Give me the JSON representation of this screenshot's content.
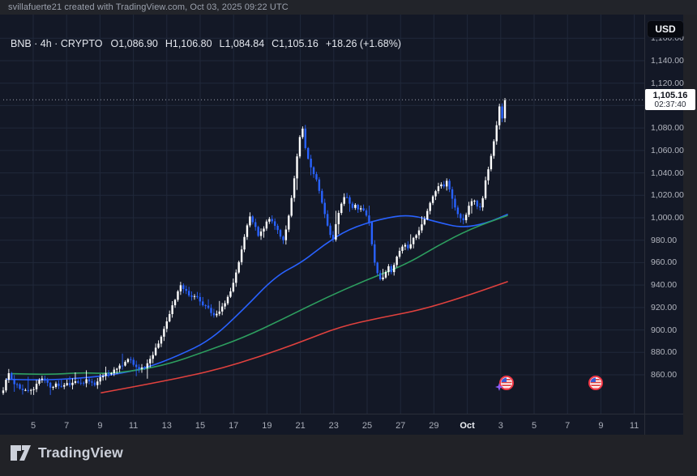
{
  "attribution": {
    "text": "svillafuerte21 created with TradingView.com, Oct 03, 2025 09:22 UTC"
  },
  "currency_button": "USD",
  "legend": {
    "title": "BNB · 4h · CRYPTO",
    "ohlc": [
      {
        "k": "O",
        "v": "1,086.90"
      },
      {
        "k": "H",
        "v": "1,106.80"
      },
      {
        "k": "L",
        "v": "1,084.84"
      },
      {
        "k": "C",
        "v": "1,105.16"
      }
    ],
    "change": "+18.26 (+1.68%)"
  },
  "price_label": {
    "price": "1,105.16",
    "countdown": "02:37:40"
  },
  "brand": {
    "name": "TradingView"
  },
  "chart_data": {
    "type": "candlestick",
    "symbol": "BNB",
    "interval": "4h",
    "exchange": "CRYPTO",
    "open": 1086.9,
    "high": 1106.8,
    "low": 1084.84,
    "close": 1105.16,
    "change_abs": "+18.26",
    "change_pct": "+1.68%",
    "last_price": 1105.16,
    "ylim": [
      826,
      1181
    ],
    "grid": true,
    "y_axis": {
      "grid_min": 860,
      "grid_max": 1160,
      "grid_step": 20,
      "labels": [
        {
          "value": 1160,
          "label": "1,160.00"
        },
        {
          "value": 1140,
          "label": "1,140.00"
        },
        {
          "value": 1120,
          "label": "1,120.00"
        },
        {
          "value": 1080,
          "label": "1,080.00"
        },
        {
          "value": 1060,
          "label": "1,060.00"
        },
        {
          "value": 1040,
          "label": "1,040.00"
        },
        {
          "value": 1020,
          "label": "1,020.00"
        },
        {
          "value": 1000,
          "label": "1,000.00"
        },
        {
          "value": 980,
          "label": "980.00"
        },
        {
          "value": 960,
          "label": "960.00"
        },
        {
          "value": 940,
          "label": "940.00"
        },
        {
          "value": 920,
          "label": "920.00"
        },
        {
          "value": 900,
          "label": "900.00"
        },
        {
          "value": 880,
          "label": "880.00"
        },
        {
          "value": 860,
          "label": "860.00"
        }
      ]
    },
    "x_axis": {
      "labels": [
        "5",
        "7",
        "9",
        "11",
        "13",
        "15",
        "17",
        "19",
        "21",
        "23",
        "25",
        "27",
        "29",
        "Oct",
        "3",
        "5",
        "7",
        "9",
        "11"
      ],
      "bold_label": "Oct",
      "first_x": 41,
      "step_x": 41.2
    },
    "candles": {
      "first_x": 4,
      "step_x": 3.42,
      "count": 182,
      "body_half_width": 1.2
    },
    "price_path": [
      [
        3,
        843
      ],
      [
        10,
        862
      ],
      [
        14,
        856
      ],
      [
        18,
        852
      ],
      [
        24,
        849
      ],
      [
        30,
        846
      ],
      [
        36,
        845
      ],
      [
        41,
        847
      ],
      [
        46,
        853
      ],
      [
        52,
        857
      ],
      [
        58,
        852
      ],
      [
        64,
        849
      ],
      [
        70,
        852
      ],
      [
        76,
        850
      ],
      [
        82,
        853
      ],
      [
        88,
        851
      ],
      [
        94,
        854
      ],
      [
        100,
        852
      ],
      [
        106,
        855
      ],
      [
        112,
        853
      ],
      [
        118,
        851
      ],
      [
        124,
        857
      ],
      [
        130,
        862
      ],
      [
        136,
        860
      ],
      [
        142,
        865
      ],
      [
        148,
        868
      ],
      [
        154,
        871
      ],
      [
        160,
        874
      ],
      [
        166,
        869
      ],
      [
        172,
        865
      ],
      [
        178,
        867
      ],
      [
        184,
        872
      ],
      [
        190,
        880
      ],
      [
        196,
        889
      ],
      [
        202,
        900
      ],
      [
        208,
        912
      ],
      [
        214,
        924
      ],
      [
        219,
        934
      ],
      [
        224,
        940
      ],
      [
        229,
        935
      ],
      [
        234,
        929
      ],
      [
        239,
        932
      ],
      [
        244,
        928
      ],
      [
        249,
        924
      ],
      [
        254,
        921
      ],
      [
        259,
        917
      ],
      [
        264,
        913
      ],
      [
        269,
        915
      ],
      [
        274,
        920
      ],
      [
        279,
        927
      ],
      [
        284,
        934
      ],
      [
        289,
        944
      ],
      [
        294,
        958
      ],
      [
        299,
        974
      ],
      [
        304,
        992
      ],
      [
        309,
        1001
      ],
      [
        314,
        993
      ],
      [
        319,
        983
      ],
      [
        324,
        989
      ],
      [
        329,
        997
      ],
      [
        334,
        1000
      ],
      [
        339,
        993
      ],
      [
        344,
        986
      ],
      [
        349,
        979
      ],
      [
        354,
        992
      ],
      [
        358,
        1010
      ],
      [
        362,
        1030
      ],
      [
        366,
        1052
      ],
      [
        370,
        1072
      ],
      [
        373,
        1080
      ],
      [
        376,
        1066
      ],
      [
        379,
        1055
      ],
      [
        383,
        1047
      ],
      [
        387,
        1040
      ],
      [
        391,
        1033
      ],
      [
        395,
        1020
      ],
      [
        399,
        1008
      ],
      [
        403,
        997
      ],
      [
        407,
        986
      ],
      [
        411,
        981
      ],
      [
        415,
        996
      ],
      [
        419,
        1008
      ],
      [
        423,
        1017
      ],
      [
        427,
        1021
      ],
      [
        431,
        1014
      ],
      [
        435,
        1008
      ],
      [
        439,
        1013
      ],
      [
        443,
        1006
      ],
      [
        447,
        1010
      ],
      [
        451,
        1004
      ],
      [
        455,
        998
      ],
      [
        459,
        976
      ],
      [
        463,
        958
      ],
      [
        467,
        948
      ],
      [
        471,
        943
      ],
      [
        475,
        951
      ],
      [
        479,
        958
      ],
      [
        483,
        951
      ],
      [
        487,
        960
      ],
      [
        491,
        967
      ],
      [
        495,
        972
      ],
      [
        499,
        977
      ],
      [
        503,
        971
      ],
      [
        507,
        978
      ],
      [
        511,
        983
      ],
      [
        515,
        987
      ],
      [
        519,
        991
      ],
      [
        523,
        998
      ],
      [
        527,
        1006
      ],
      [
        531,
        1013
      ],
      [
        535,
        1021
      ],
      [
        539,
        1027
      ],
      [
        543,
        1030
      ],
      [
        547,
        1028
      ],
      [
        551,
        1032
      ],
      [
        555,
        1025
      ],
      [
        559,
        1014
      ],
      [
        563,
        1007
      ],
      [
        567,
        1001
      ],
      [
        571,
        998
      ],
      [
        575,
        1003
      ],
      [
        579,
        1011
      ],
      [
        583,
        1017
      ],
      [
        587,
        1013
      ],
      [
        591,
        1007
      ],
      [
        595,
        1016
      ],
      [
        599,
        1032
      ],
      [
        603,
        1046
      ],
      [
        607,
        1060
      ],
      [
        611,
        1076
      ],
      [
        615,
        1091
      ],
      [
        617,
        1104
      ],
      [
        620,
        1086
      ],
      [
        623,
        1105
      ]
    ],
    "moving_averages": [
      {
        "name": "ma-fast-blue",
        "color": "#2962ff",
        "points": [
          [
            8,
            856
          ],
          [
            50,
            855
          ],
          [
            100,
            857
          ],
          [
            140,
            860
          ],
          [
            180,
            866
          ],
          [
            220,
            877
          ],
          [
            260,
            891
          ],
          [
            300,
            918
          ],
          [
            340,
            948
          ],
          [
            372,
            960
          ],
          [
            400,
            976
          ],
          [
            430,
            990
          ],
          [
            470,
            999
          ],
          [
            505,
            1003
          ],
          [
            540,
            996
          ],
          [
            570,
            991
          ],
          [
            600,
            995
          ],
          [
            626,
            1003
          ]
        ]
      },
      {
        "name": "ma-mid-green",
        "color": "#2d9e5f",
        "points": [
          [
            14,
            861
          ],
          [
            60,
            860
          ],
          [
            100,
            862
          ],
          [
            132,
            861
          ],
          [
            170,
            864
          ],
          [
            210,
            870
          ],
          [
            250,
            880
          ],
          [
            300,
            893
          ],
          [
            350,
            910
          ],
          [
            400,
            928
          ],
          [
            450,
            944
          ],
          [
            500,
            958
          ],
          [
            540,
            975
          ],
          [
            580,
            990
          ],
          [
            626,
            1002
          ]
        ]
      },
      {
        "name": "ma-long-red",
        "color": "#e0413e",
        "points": [
          [
            125,
            844
          ],
          [
            170,
            850
          ],
          [
            220,
            857
          ],
          [
            270,
            865
          ],
          [
            320,
            876
          ],
          [
            370,
            889
          ],
          [
            420,
            903
          ],
          [
            470,
            911
          ],
          [
            520,
            918
          ],
          [
            570,
            929
          ],
          [
            626,
            943
          ]
        ]
      }
    ],
    "events": [
      {
        "x": 625,
        "y": 473,
        "kind": "us-flag"
      },
      {
        "x": 735,
        "y": 473,
        "kind": "us-flag"
      }
    ],
    "sparkle": {
      "x": 616,
      "y": 478
    },
    "colors": {
      "up": "#ffffff",
      "down": "#2962ff",
      "grid": "#20283a",
      "dotted": "#cdd2dd",
      "ring": "#f23645",
      "flag_blue": "#3b5bd6",
      "flag_red": "#e04545",
      "sparkle": "#8b5cf6",
      "background": "#131826"
    }
  }
}
